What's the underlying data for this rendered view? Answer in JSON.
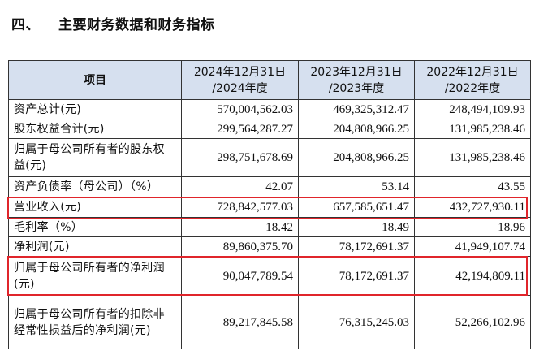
{
  "section": {
    "number": "四、",
    "title": "主要财务数据和财务指标"
  },
  "table": {
    "headers": [
      "项目",
      "2024年12月31日\n/2024年度",
      "2023年12月31日\n/2023年度",
      "2022年12月31日\n/2022年度"
    ],
    "rows": [
      {
        "label": "资产总计(元)",
        "values": [
          "570,004,562.03",
          "469,325,312.47",
          "248,494,109.93"
        ]
      },
      {
        "label": "股东权益合计(元)",
        "values": [
          "299,564,287.27",
          "204,808,966.25",
          "131,985,238.46"
        ]
      },
      {
        "label": "归属于母公司所有者的股东权益(元)",
        "values": [
          "298,751,678.69",
          "204,808,966.25",
          "131,985,238.46"
        ]
      },
      {
        "label": "资产负债率（母公司）（%）",
        "values": [
          "42.07",
          "53.14",
          "43.55"
        ]
      },
      {
        "label": "营业收入(元)",
        "values": [
          "728,842,577.03",
          "657,585,651.47",
          "432,727,930.11"
        ]
      },
      {
        "label": "毛利率（%）",
        "values": [
          "18.42",
          "18.49",
          "18.96"
        ]
      },
      {
        "label": "净利润(元)",
        "values": [
          "89,860,375.70",
          "78,172,691.37",
          "41,949,107.74"
        ]
      },
      {
        "label": "归属于母公司所有者的净利润(元)",
        "values": [
          "90,047,789.54",
          "78,172,691.37",
          "42,194,809.11"
        ]
      },
      {
        "label": "归属于母公司所有者的扣除非经常性损益后的净利润(元)",
        "values": [
          "89,217,845.58",
          "76,315,245.03",
          "52,266,102.96"
        ]
      }
    ]
  },
  "colors": {
    "header_bg": "#d6e0ef",
    "highlight_border": "#e0252b",
    "grid": "#333333"
  }
}
